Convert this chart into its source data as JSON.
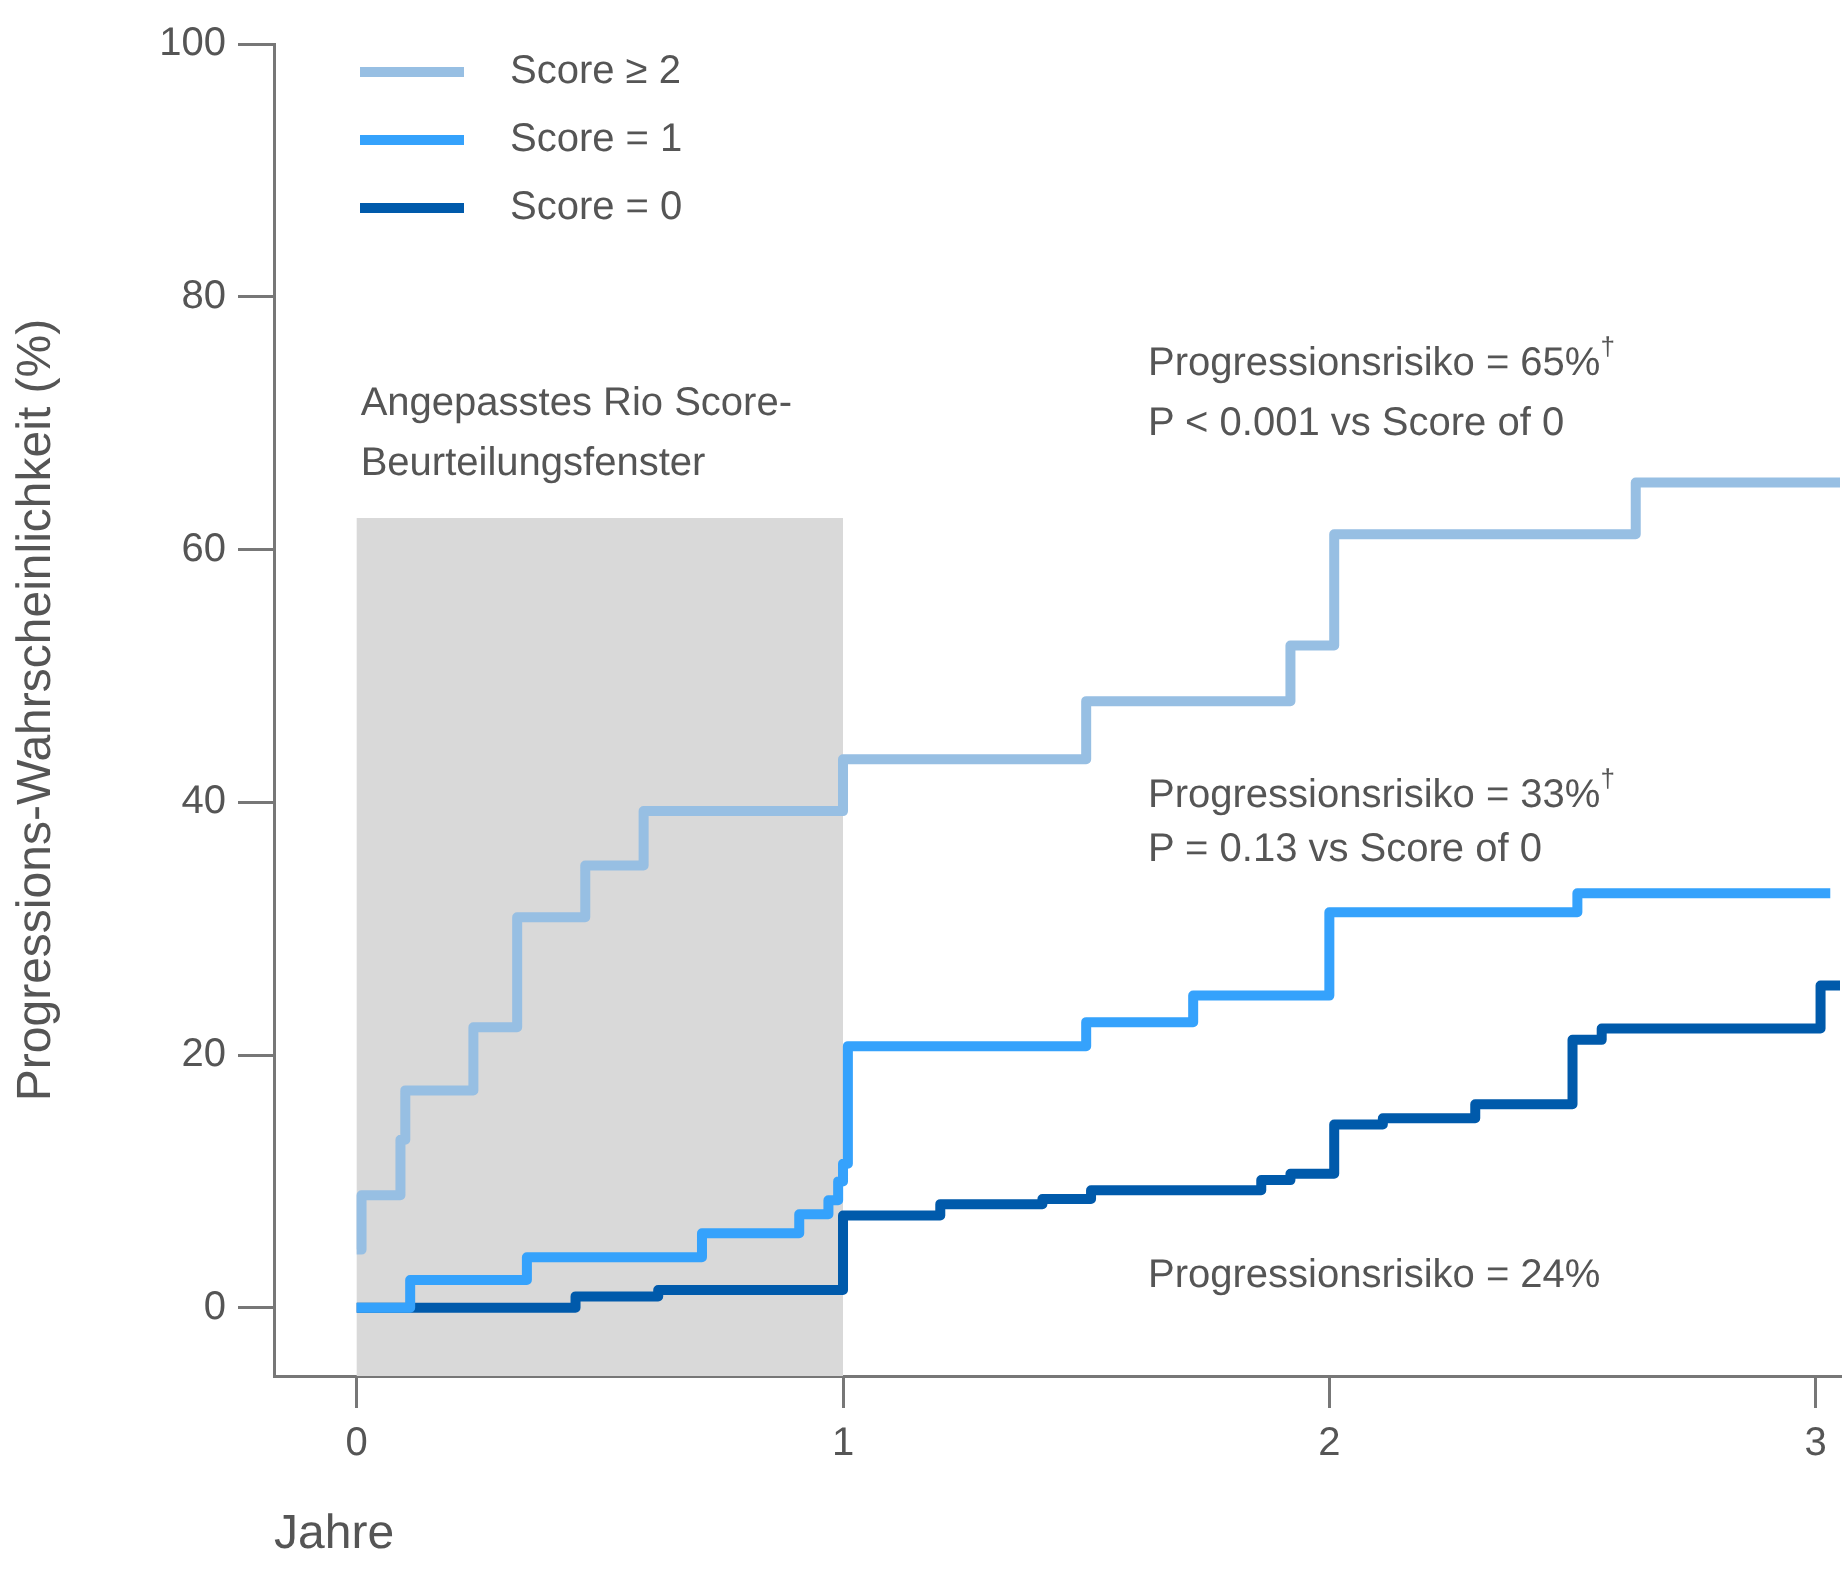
{
  "chart_data": {
    "type": "step",
    "ylabel": "Progressions-Wahrscheinlichkeit (%)",
    "xlabel": "Jahre",
    "xlim": [
      -0.17,
      3.05
    ],
    "xticks": [
      0,
      1,
      2,
      3
    ],
    "ylim": [
      -5.4,
      100
    ],
    "yticks": [
      0,
      20,
      40,
      60,
      80,
      100
    ],
    "grid": false,
    "legend": "top left",
    "line_style": "solid",
    "marker": "none",
    "series": [
      {
        "name": "Score ≥ 2",
        "color": "#97bfe3",
        "x": [
          0,
          0.01,
          0.09,
          0.1,
          0.24,
          0.33,
          0.47,
          0.59,
          1.0,
          1.5,
          1.92,
          2.01,
          2.63,
          3.05
        ],
        "values": [
          4.6,
          8.9,
          13.3,
          17.2,
          22.2,
          30.9,
          35,
          39.3,
          43.4,
          48,
          52.4,
          61.2,
          65.3,
          65.3
        ]
      },
      {
        "name": "Score = 1",
        "color": "#35a2fc",
        "x": [
          0,
          0.11,
          0.35,
          0.71,
          0.91,
          0.97,
          0.99,
          1.0,
          1.01,
          1.5,
          1.72,
          2.0,
          2.51,
          3.03
        ],
        "values": [
          0,
          2.2,
          4.0,
          5.9,
          7.4,
          8.5,
          10,
          11.4,
          20.7,
          22.6,
          24.7,
          31.3,
          32.8,
          32.8
        ]
      },
      {
        "name": "Score = 0",
        "color": "#005aab",
        "x": [
          0,
          0.45,
          0.62,
          1.0,
          1.2,
          1.41,
          1.51,
          1.86,
          1.92,
          2.01,
          2.11,
          2.3,
          2.5,
          2.56,
          3.01,
          3.05
        ],
        "values": [
          0,
          0.9,
          1.4,
          7.3,
          8.2,
          8.6,
          9.3,
          10.1,
          10.6,
          14.5,
          15,
          16.1,
          21.2,
          22.1,
          25.5,
          25.5
        ]
      }
    ],
    "bands": [
      {
        "axis": "x",
        "from": 0,
        "to": 1,
        "label": "Angepasstes Rio Score-Beurteilungsfenster",
        "color": "#d9d9d9"
      }
    ],
    "annotations": [
      "Progressionsrisiko = 65%$^{†}$",
      "P < 0.001 vs Score of 0",
      "Progressionsrisiko = 33%$^{†}$",
      "P = 0.13 vs Score of 0",
      "Progressionsrisiko = 24%"
    ]
  }
}
